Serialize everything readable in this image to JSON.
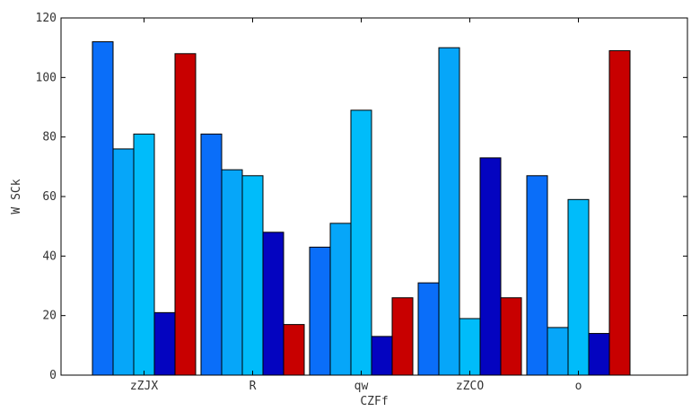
{
  "chart_data": {
    "type": "bar",
    "title": "",
    "xlabel": "CZFf",
    "ylabel": "W SCk",
    "ylim": [
      0,
      120
    ],
    "yticks": [
      0,
      20,
      40,
      60,
      80,
      100,
      120
    ],
    "categories": [
      "zZJX",
      "R",
      "qw",
      "zZCO",
      "o"
    ],
    "series": [
      {
        "values": [
          112,
          81,
          43,
          31,
          67
        ],
        "color": "#0a6ef9"
      },
      {
        "values": [
          76,
          69,
          51,
          110,
          16
        ],
        "color": "#06a6f9"
      },
      {
        "values": [
          81,
          67,
          89,
          19,
          59
        ],
        "color": "#00bcfa"
      },
      {
        "values": [
          21,
          48,
          13,
          73,
          14
        ],
        "color": "#0404c0"
      },
      {
        "values": [
          108,
          17,
          26,
          26,
          109
        ],
        "color": "#c80000"
      }
    ],
    "grid": false,
    "legend": "none"
  }
}
